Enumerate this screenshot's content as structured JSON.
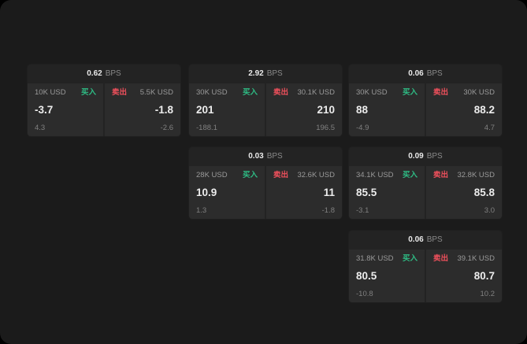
{
  "labels": {
    "buy": "买入",
    "sell": "卖出",
    "bps": "BPS"
  },
  "colors": {
    "buy_green": "#2ebd85",
    "sell_red": "#f0505c",
    "background": "#1b1b1b",
    "card_bg": "#232323",
    "panel_bg": "#2c2c2c"
  },
  "cards": [
    {
      "bps": "0.62",
      "buy": {
        "amount": "10K USD",
        "price": "-3.7",
        "sub": "4.3"
      },
      "sell": {
        "amount": "5.5K USD",
        "price": "-1.8",
        "sub": "-2.6"
      }
    },
    {
      "bps": "2.92",
      "buy": {
        "amount": "30K USD",
        "price": "201",
        "sub": "-188.1"
      },
      "sell": {
        "amount": "30.1K USD",
        "price": "210",
        "sub": "196.5"
      }
    },
    {
      "bps": "0.06",
      "buy": {
        "amount": "30K USD",
        "price": "88",
        "sub": "-4.9"
      },
      "sell": {
        "amount": "30K USD",
        "price": "88.2",
        "sub": "4.7"
      }
    },
    {
      "bps": "0.03",
      "buy": {
        "amount": "28K USD",
        "price": "10.9",
        "sub": "1.3"
      },
      "sell": {
        "amount": "32.6K USD",
        "price": "11",
        "sub": "-1.8"
      }
    },
    {
      "bps": "0.09",
      "buy": {
        "amount": "34.1K USD",
        "price": "85.5",
        "sub": "-3.1"
      },
      "sell": {
        "amount": "32.8K USD",
        "price": "85.8",
        "sub": "3.0"
      }
    },
    {
      "bps": "0.06",
      "buy": {
        "amount": "31.8K USD",
        "price": "80.5",
        "sub": "-10.8"
      },
      "sell": {
        "amount": "39.1K USD",
        "price": "80.7",
        "sub": "10.2"
      }
    }
  ]
}
